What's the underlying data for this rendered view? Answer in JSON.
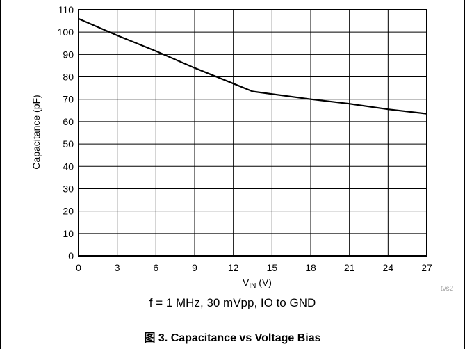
{
  "chart_data": {
    "type": "line",
    "xlabel_main": "V",
    "xlabel_sub": "IN",
    "xlabel_unit": " (V)",
    "ylabel": "Capacitance (pF)",
    "xlim": [
      0,
      27
    ],
    "ylim": [
      0,
      110
    ],
    "xticks": [
      0,
      3,
      6,
      9,
      12,
      15,
      18,
      21,
      24,
      27
    ],
    "yticks": [
      0,
      10,
      20,
      30,
      40,
      50,
      60,
      70,
      80,
      90,
      100,
      110
    ],
    "grid": true,
    "line_color": "#000000",
    "series": [
      {
        "x": [
          0,
          3,
          6,
          9,
          12,
          13.5,
          18,
          21,
          24,
          27
        ],
        "y": [
          106,
          98.5,
          91.5,
          84,
          77,
          73.5,
          70,
          68,
          65.5,
          63.5
        ]
      }
    ],
    "watermark": "tvs2",
    "conditions": "f = 1 MHz, 30 mVpp, IO to GND",
    "caption": "图 3. Capacitance vs Voltage Bias"
  }
}
